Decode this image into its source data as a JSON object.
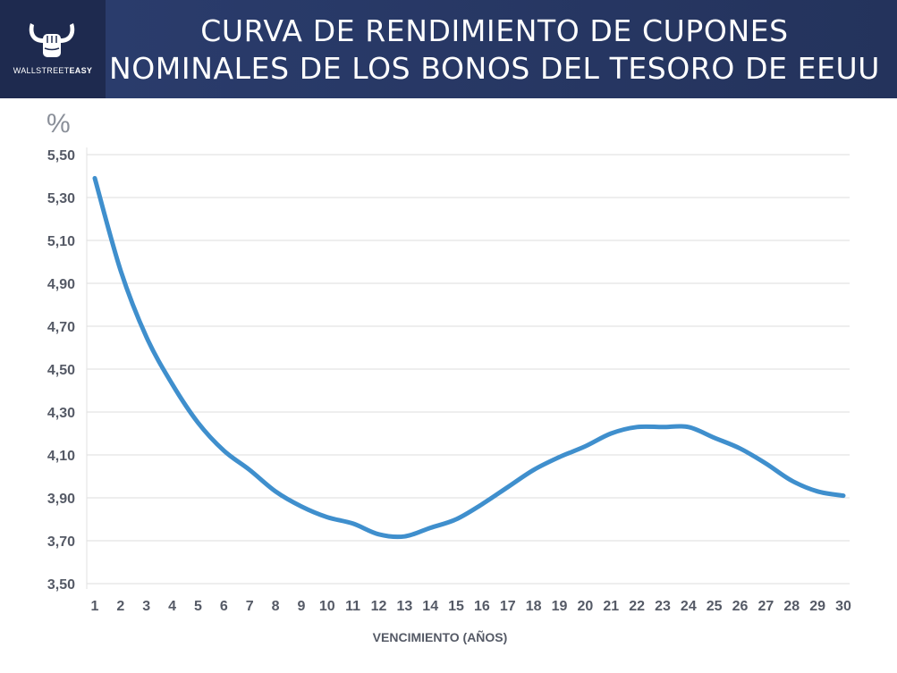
{
  "header": {
    "title_line1": "CURVA DE RENDIMIENTO DE CUPONES",
    "title_line2": "NOMINALES DE LOS BONOS DEL TESORO DE EEUU",
    "logo_text_light": "WALLSTREET",
    "logo_text_bold": "EASY",
    "logo_icon": "bull-horns-fist-icon",
    "background_color": "#26365f",
    "logo_panel_color": "#1e2a4f"
  },
  "chart_data": {
    "type": "line",
    "title": "CURVA DE RENDIMIENTO DE CUPONES NOMINALES DE LOS BONOS DEL TESORO DE EEUU",
    "xlabel": "VENCIMIENTO (AÑOS)",
    "ylabel": "%",
    "ylim": [
      3.5,
      5.5
    ],
    "yticks": [
      "3,50",
      "3,70",
      "3,90",
      "4,10",
      "4,30",
      "4,50",
      "4,70",
      "4,90",
      "5,10",
      "5,30",
      "5,50"
    ],
    "grid": true,
    "line_color": "#3f8fcd",
    "x": [
      1,
      2,
      3,
      4,
      5,
      6,
      7,
      8,
      9,
      10,
      11,
      12,
      13,
      14,
      15,
      16,
      17,
      18,
      19,
      20,
      21,
      22,
      23,
      24,
      25,
      26,
      27,
      28,
      29,
      30
    ],
    "series": [
      {
        "values": [
          5.39,
          4.96,
          4.65,
          4.43,
          4.25,
          4.12,
          4.03,
          3.93,
          3.86,
          3.81,
          3.78,
          3.73,
          3.72,
          3.76,
          3.8,
          3.87,
          3.95,
          4.03,
          4.09,
          4.14,
          4.2,
          4.23,
          4.23,
          4.23,
          4.18,
          4.13,
          4.06,
          3.98,
          3.93,
          3.91
        ]
      }
    ]
  }
}
